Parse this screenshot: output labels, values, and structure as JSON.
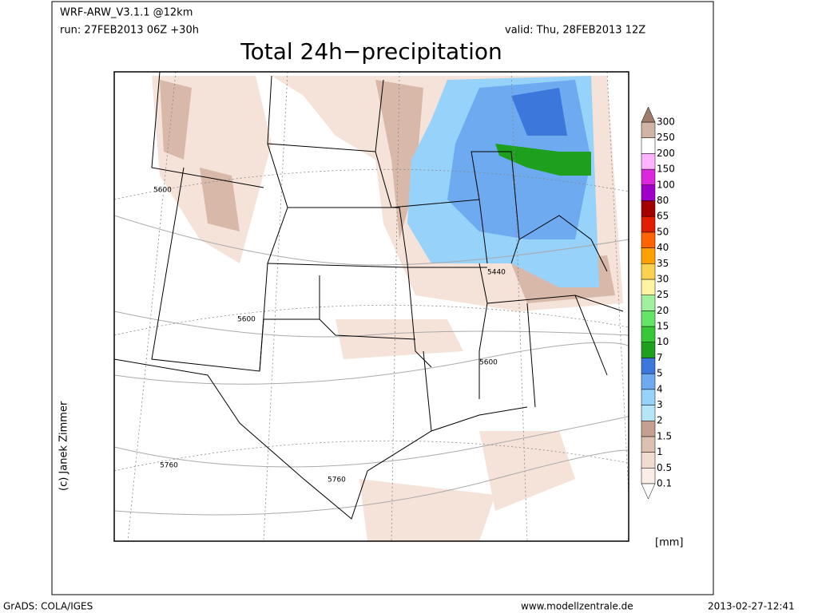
{
  "header": {
    "model": "WRF-ARW_V3.1.1 @12km",
    "run": "run: 27FEB2013 06Z +30h",
    "valid": "valid: Thu, 28FEB2013 12Z",
    "title": "Total 24h−precipitation"
  },
  "credit": "(c) Janek Zimmer",
  "legend": {
    "labels": [
      "0.1",
      "0.5",
      "1",
      "1.5",
      "2",
      "3",
      "4",
      "5",
      "7",
      "10",
      "15",
      "20",
      "25",
      "30",
      "35",
      "40",
      "50",
      "65",
      "80",
      "100",
      "150",
      "200",
      "250",
      "300"
    ],
    "colors": [
      "#fbeee6",
      "#f1dccf",
      "#dcc0b0",
      "#c4a090",
      "#b4e6f8",
      "#96d2fa",
      "#6eaaf0",
      "#3c78dc",
      "#1ea01e",
      "#37c837",
      "#64e664",
      "#a0f0a0",
      "#fff5a0",
      "#fad250",
      "#ffa000",
      "#ff6400",
      "#e11e00",
      "#a50000",
      "#a000c8",
      "#dc28dc",
      "#ffb4ff",
      "#ffffff",
      "#d2b4a4"
    ],
    "under_color": "#ffffff",
    "over_color": "#a07c6c",
    "unit": "[mm]"
  },
  "contour_labels": [
    "5600",
    "5600",
    "5440",
    "5600",
    "5760",
    "5760"
  ],
  "footer": {
    "left": "GrADS: COLA/IGES",
    "center": "www.modellzentrale.de",
    "right": "2013-02-27-12:41"
  }
}
